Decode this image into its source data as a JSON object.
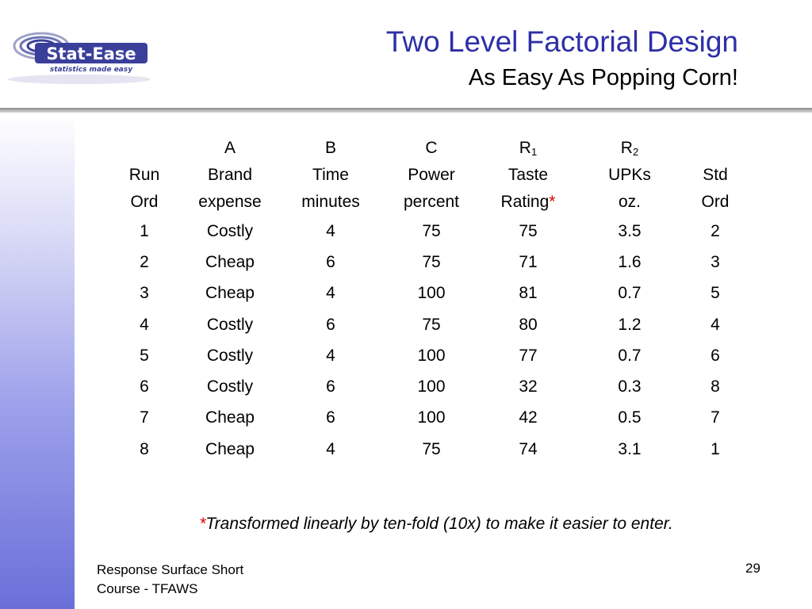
{
  "logo": {
    "text": "Stat-Ease",
    "tagline": "statistics made easy"
  },
  "slide": {
    "title": "Two Level Factorial Design",
    "subtitle": "As Easy As Popping Corn!"
  },
  "table": {
    "factor_row": [
      "",
      "A",
      "B",
      "C",
      "R",
      "R",
      ""
    ],
    "factor_subscripts": {
      "4": "1",
      "5": "2"
    },
    "name_row": [
      "Run",
      "Brand",
      "Time",
      "Power",
      "Taste",
      "UPKs",
      "Std"
    ],
    "unit_row": [
      "Ord",
      "expense",
      "minutes",
      "percent",
      "Rating",
      "oz.",
      "Ord"
    ],
    "asterisk": "*",
    "rows": [
      [
        "1",
        "Costly",
        "4",
        "75",
        "75",
        "3.5",
        "2"
      ],
      [
        "2",
        "Cheap",
        "6",
        "75",
        "71",
        "1.6",
        "3"
      ],
      [
        "3",
        "Cheap",
        "4",
        "100",
        "81",
        "0.7",
        "5"
      ],
      [
        "4",
        "Costly",
        "6",
        "75",
        "80",
        "1.2",
        "4"
      ],
      [
        "5",
        "Costly",
        "4",
        "100",
        "77",
        "0.7",
        "6"
      ],
      [
        "6",
        "Costly",
        "6",
        "100",
        "32",
        "0.3",
        "8"
      ],
      [
        "7",
        "Cheap",
        "6",
        "100",
        "42",
        "0.5",
        "7"
      ],
      [
        "8",
        "Cheap",
        "4",
        "75",
        "74",
        "3.1",
        "1"
      ]
    ]
  },
  "footnote": {
    "asterisk": "*",
    "text": "Transformed linearly by ten-fold (10x) to make it easier to enter."
  },
  "footer": {
    "line1": "Response Surface Short",
    "line2": "Course - TFAWS",
    "page_number": "29"
  },
  "colors": {
    "title": "#2d2fa6",
    "asterisk": "#e00000",
    "logo": "#3a3f9a"
  }
}
